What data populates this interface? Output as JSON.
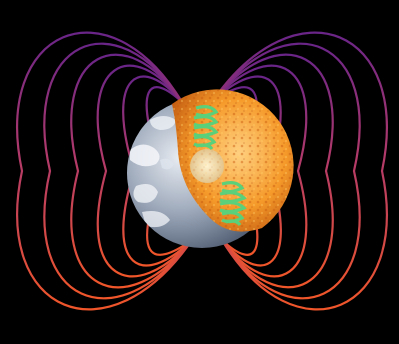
{
  "scene": {
    "subject": "earth-cutaway-with-magnetic-field",
    "colors": {
      "background": "#000000",
      "field_line_top": "#7a2a8a",
      "field_line_bottom": "#f0562a",
      "mantle_light": "#ffb347",
      "mantle_dark": "#d96a12",
      "inner_core": "#f2dfb0",
      "coil": "#5ad07a",
      "ocean": "#8fa0b8",
      "cloud": "#f2f4f8"
    },
    "field_line_count": 6,
    "coil_count": 2
  }
}
